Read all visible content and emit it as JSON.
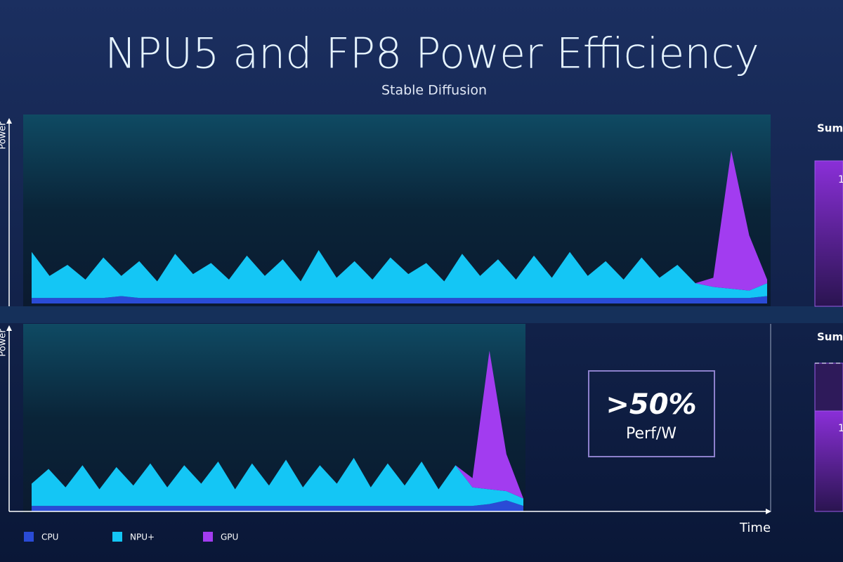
{
  "title": "NPU5 and FP8 Power Efficiency",
  "subtitle": "Stable Diffusion",
  "chart_data": [
    {
      "type": "area",
      "y_label": "Power",
      "ylim": [
        0,
        100
      ],
      "sum_label": "Sum",
      "bar_label": "1",
      "series": [
        {
          "name": "CPU",
          "color": "#2a4bd6",
          "values": [
            3,
            3,
            3,
            3,
            3,
            4,
            3,
            3,
            3,
            3,
            3,
            3,
            3,
            3,
            3,
            3,
            3,
            3,
            3,
            3,
            3,
            3,
            3,
            3,
            3,
            3,
            3,
            3,
            3,
            3,
            3,
            3,
            3,
            3,
            3,
            3,
            3,
            3,
            3,
            3,
            3,
            4
          ]
        },
        {
          "name": "NPU+",
          "color": "#14c6f5",
          "values": [
            25,
            12,
            18,
            10,
            22,
            11,
            20,
            9,
            24,
            13,
            19,
            10,
            23,
            12,
            21,
            9,
            26,
            11,
            20,
            10,
            22,
            13,
            19,
            9,
            24,
            12,
            21,
            10,
            23,
            11,
            25,
            12,
            20,
            10,
            22,
            11,
            18,
            8,
            6,
            5,
            4,
            7
          ]
        },
        {
          "name": "GPU",
          "color": "#a23cf0",
          "values": [
            0,
            0,
            0,
            0,
            0,
            0,
            0,
            0,
            0,
            0,
            0,
            0,
            0,
            0,
            0,
            0,
            0,
            0,
            0,
            0,
            0,
            0,
            0,
            0,
            0,
            0,
            0,
            0,
            0,
            0,
            0,
            0,
            0,
            0,
            0,
            0,
            0,
            0,
            5,
            75,
            30,
            2
          ]
        }
      ]
    },
    {
      "type": "area",
      "y_label": "Power",
      "x_label": "Time",
      "ylim": [
        0,
        100
      ],
      "sum_label": "Sum",
      "bar_label": "1",
      "annotation": {
        "headline": ">50%",
        "text": "Perf/W"
      },
      "series": [
        {
          "name": "CPU",
          "color": "#2a4bd6",
          "values": [
            3,
            3,
            3,
            3,
            3,
            3,
            3,
            3,
            3,
            3,
            3,
            3,
            3,
            3,
            3,
            3,
            3,
            3,
            3,
            3,
            3,
            3,
            3,
            3,
            3,
            3,
            3,
            4,
            6,
            3
          ]
        },
        {
          "name": "NPU+",
          "color": "#14c6f5",
          "values": [
            12,
            20,
            10,
            22,
            9,
            21,
            11,
            23,
            10,
            22,
            12,
            24,
            9,
            23,
            11,
            25,
            10,
            22,
            12,
            26,
            10,
            23,
            11,
            24,
            9,
            22,
            10,
            8,
            5,
            4
          ]
        },
        {
          "name": "GPU",
          "color": "#a23cf0",
          "values": [
            0,
            0,
            0,
            0,
            0,
            0,
            0,
            0,
            0,
            0,
            0,
            0,
            0,
            0,
            0,
            0,
            0,
            0,
            0,
            0,
            0,
            0,
            0,
            0,
            0,
            0,
            5,
            75,
            20,
            0
          ]
        }
      ]
    }
  ]
}
